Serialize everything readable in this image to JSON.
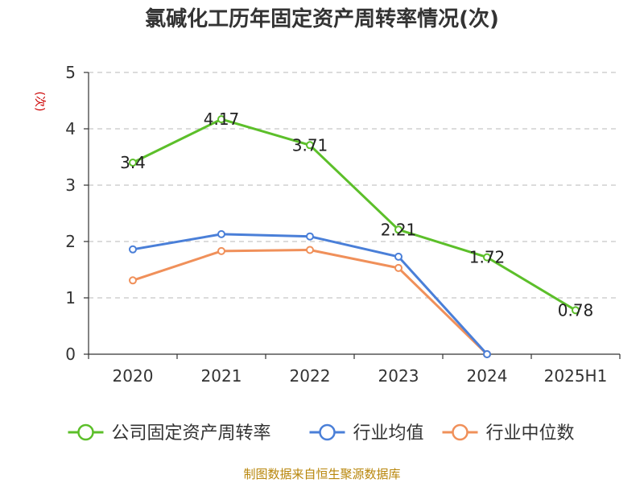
{
  "chart_data": {
    "type": "line",
    "title": "氯碱化工历年固定资产周转率情况(次)",
    "ylabel": "(次)",
    "xlabel": "",
    "categories": [
      "2020",
      "2021",
      "2022",
      "2023",
      "2024",
      "2025H1"
    ],
    "ylim": [
      0,
      5
    ],
    "yticks": [
      0,
      1,
      2,
      3,
      4,
      5
    ],
    "grid": true,
    "legend_position": "bottom",
    "series": [
      {
        "name": "公司固定资产周转率",
        "color": "#5cbf2a",
        "values": [
          3.4,
          4.17,
          3.71,
          2.21,
          1.72,
          0.78
        ],
        "labels": [
          "3.4",
          "4.17",
          "3.71",
          "2.21",
          "1.72",
          "0.78"
        ]
      },
      {
        "name": "行业均值",
        "color": "#4a7fd8",
        "values": [
          1.86,
          2.13,
          2.09,
          1.73,
          0.0,
          null
        ]
      },
      {
        "name": "行业中位数",
        "color": "#f0905a",
        "values": [
          1.31,
          1.83,
          1.85,
          1.53,
          0.0,
          null
        ]
      }
    ]
  },
  "source": "制图数据来自恒生聚源数据库"
}
